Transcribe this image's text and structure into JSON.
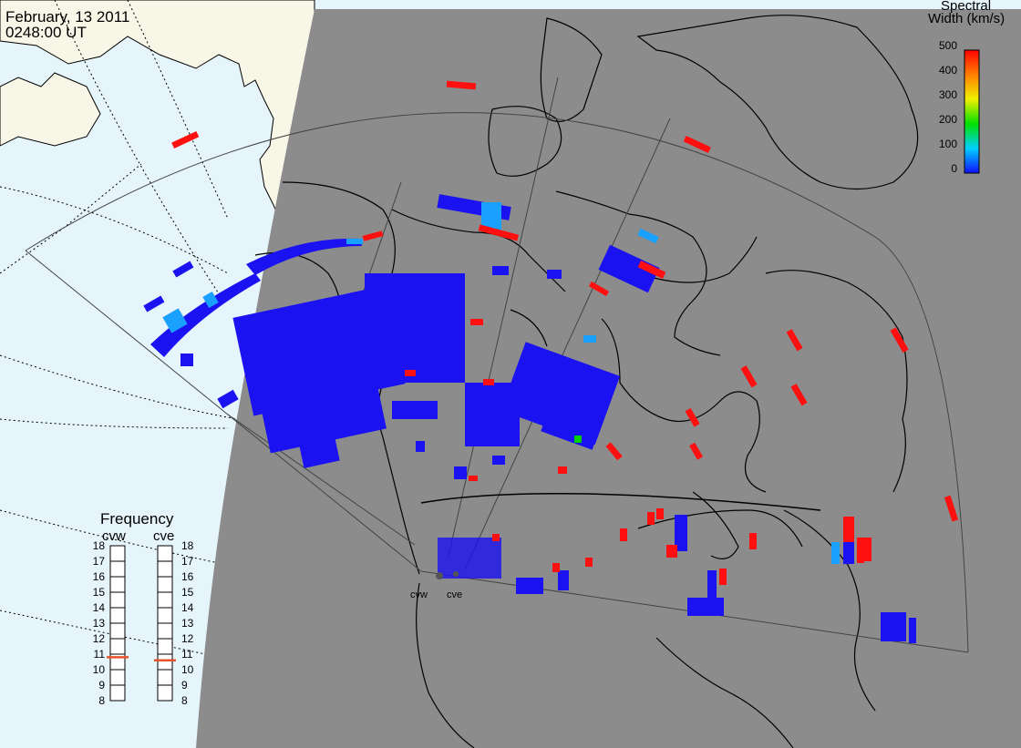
{
  "header": {
    "date": "February, 13 2011",
    "time": "0248:00 UT"
  },
  "colorbar": {
    "title_line1": "Spectral",
    "title_line2": "Width (km/s)",
    "ticks": [
      "500",
      "400",
      "300",
      "200",
      "100",
      "0"
    ]
  },
  "frequency_panel": {
    "title": "Frequency",
    "radars": [
      {
        "name": "cvw",
        "value_mhz": 10.8
      },
      {
        "name": "cve",
        "value_mhz": 10.6
      }
    ],
    "ticks": [
      "18",
      "17",
      "16",
      "15",
      "14",
      "13",
      "12",
      "11",
      "10",
      "9",
      "8"
    ],
    "indicator_color": "#e8542a"
  },
  "sites": [
    "cvw",
    "cve"
  ],
  "colors": {
    "nightside": "#8c8c8c",
    "ocean": "#e6f4fc",
    "land_day": "#f8f6e6",
    "low_width": "#1a12f0",
    "high_width": "#ff1010",
    "mid_cyan": "#1aa0ff"
  }
}
